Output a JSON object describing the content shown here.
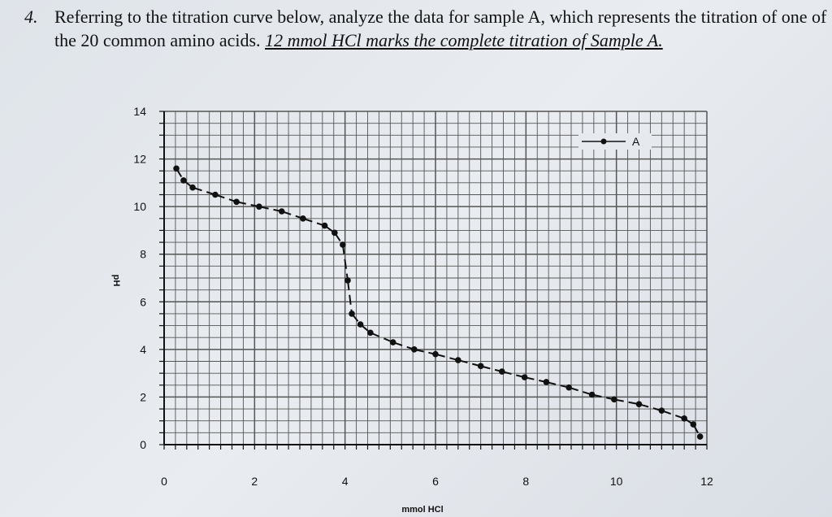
{
  "question": {
    "number": "4.",
    "text": "Referring to the titration curve below, analyze the data for sample A, which represents the titration of one of the 20 common amino acids.",
    "emphasis": "12 mmol HCl marks the complete titration of Sample A."
  },
  "chart_data": {
    "type": "line",
    "title": "",
    "xlabel": "mmol HCl",
    "ylabel": "pH",
    "xlim": [
      0,
      12
    ],
    "ylim": [
      0,
      14
    ],
    "xticks": [
      "0",
      "2",
      "4",
      "6",
      "8",
      "10",
      "12"
    ],
    "yticks": [
      "0",
      "2",
      "4",
      "6",
      "8",
      "10",
      "12",
      "14"
    ],
    "grid": true,
    "legend": {
      "placement": "top-right",
      "entries": [
        "A"
      ]
    },
    "series": [
      {
        "name": "A",
        "x": [
          0.27,
          0.43,
          0.63,
          1.13,
          1.6,
          2.1,
          2.6,
          3.07,
          3.55,
          3.77,
          3.95,
          4.06,
          4.15,
          4.34,
          4.56,
          5.06,
          5.53,
          6.0,
          6.5,
          7.0,
          7.47,
          7.97,
          8.45,
          8.95,
          9.46,
          9.95,
          10.5,
          11.0,
          11.5,
          11.7,
          11.85
        ],
        "y": [
          11.6,
          11.1,
          10.8,
          10.5,
          10.2,
          10.0,
          9.8,
          9.5,
          9.2,
          8.9,
          8.4,
          6.9,
          5.5,
          5.05,
          4.7,
          4.3,
          4.0,
          3.8,
          3.55,
          3.3,
          3.07,
          2.83,
          2.63,
          2.4,
          2.1,
          1.9,
          1.7,
          1.43,
          1.1,
          0.85,
          0.34
        ]
      }
    ]
  },
  "colors": {
    "ink": "#111111",
    "grid": "#555555"
  }
}
